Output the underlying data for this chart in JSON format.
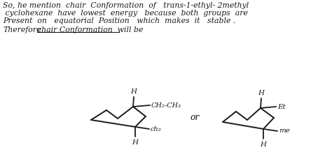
{
  "bg_color": "#ffffff",
  "line_color": "#1a1a1a",
  "text_color": "#1a1a1a",
  "line1": "So, he mention  chair  Conformation  of   trans-1-ethyl- 2methyl",
  "line2": " cyclohexane  have  lowest  energy   because  both  groups  are",
  "line3": "Present  on   equatorial  Position   which  makes  it   stable .",
  "line4": "Therefore",
  "line4b": "chair Conformation  will be",
  "or_text": "or",
  "label_H1": "H",
  "label_CH2CH3": "CH₂-CH₃",
  "label_CH3_1": "ch₃",
  "label_H2": "H",
  "label_H3": "H",
  "label_Et": "Et",
  "label_Me": "me",
  "label_H4": "H"
}
